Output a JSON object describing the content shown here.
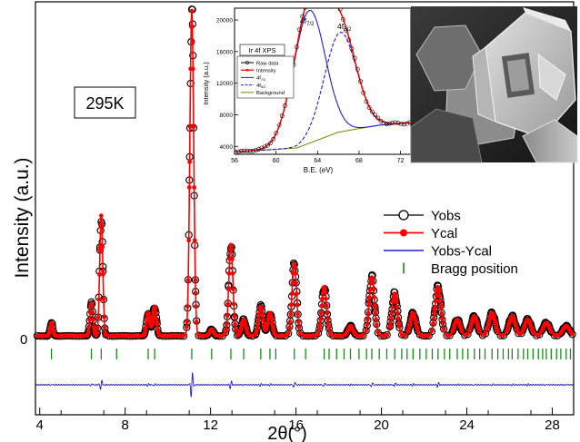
{
  "chart_data": [
    {
      "type": "line",
      "title": "",
      "xlabel": "2θ(°)",
      "ylabel": "Intensity (a.u.)",
      "xlim": [
        3.8,
        29.0
      ],
      "xticks": [
        4,
        8,
        12,
        16,
        20,
        24,
        28
      ],
      "y_zero_label": "0",
      "temperature_label": "295K",
      "series": [
        {
          "name": "Yobs",
          "style": "open-circles",
          "color": "#000000"
        },
        {
          "name": "Ycal",
          "style": "line-filled-circles",
          "color": "#ff0000"
        },
        {
          "name": "Yobs-Ycal",
          "style": "line",
          "color": "#1f1fd0"
        },
        {
          "name": "Bragg position",
          "style": "ticks",
          "color": "#1a8c1a"
        }
      ],
      "peaks": [
        {
          "x": 4.55,
          "y": 0.04
        },
        {
          "x": 6.42,
          "y": 0.1
        },
        {
          "x": 6.88,
          "y": 0.37
        },
        {
          "x": 9.08,
          "y": 0.07
        },
        {
          "x": 9.38,
          "y": 0.09
        },
        {
          "x": 11.12,
          "y": 1.0
        },
        {
          "x": 12.05,
          "y": 0.02
        },
        {
          "x": 12.95,
          "y": 0.28
        },
        {
          "x": 13.55,
          "y": 0.05
        },
        {
          "x": 14.35,
          "y": 0.09
        },
        {
          "x": 14.78,
          "y": 0.07
        },
        {
          "x": 15.92,
          "y": 0.22
        },
        {
          "x": 17.32,
          "y": 0.15
        },
        {
          "x": 18.55,
          "y": 0.03
        },
        {
          "x": 19.55,
          "y": 0.18
        },
        {
          "x": 20.62,
          "y": 0.13
        },
        {
          "x": 21.48,
          "y": 0.07
        },
        {
          "x": 22.65,
          "y": 0.15
        },
        {
          "x": 23.55,
          "y": 0.05
        },
        {
          "x": 24.35,
          "y": 0.06
        },
        {
          "x": 25.18,
          "y": 0.07
        },
        {
          "x": 26.12,
          "y": 0.06
        },
        {
          "x": 26.85,
          "y": 0.05
        },
        {
          "x": 27.72,
          "y": 0.04
        },
        {
          "x": 28.65,
          "y": 0.03
        }
      ],
      "bragg_positions": [
        4.55,
        6.42,
        6.88,
        7.6,
        9.08,
        9.38,
        11.12,
        12.05,
        12.95,
        13.55,
        14.35,
        14.78,
        15.05,
        15.92,
        16.45,
        17.32,
        17.55,
        17.9,
        18.25,
        18.55,
        18.95,
        19.3,
        19.55,
        19.9,
        20.25,
        20.62,
        20.95,
        21.2,
        21.48,
        21.8,
        22.1,
        22.38,
        22.65,
        22.95,
        23.2,
        23.55,
        23.8,
        24.05,
        24.35,
        24.6,
        24.85,
        25.18,
        25.45,
        25.7,
        25.95,
        26.12,
        26.4,
        26.65,
        26.85,
        27.1,
        27.35,
        27.55,
        27.72,
        27.95,
        28.2,
        28.4,
        28.65,
        28.85
      ]
    },
    {
      "type": "line",
      "title": "Ir 4f XPS",
      "xlabel": "B.E. (eV)",
      "ylabel": "Intensity (a.u.)",
      "xlim": [
        56,
        73
      ],
      "ylim": [
        3000,
        21500
      ],
      "xticks": [
        56,
        60,
        64,
        68,
        72
      ],
      "yticks": [
        4000,
        8000,
        12000,
        16000,
        20000
      ],
      "peak_labels": [
        {
          "main": "4f",
          "sub": "7/2",
          "x": 62.3
        },
        {
          "main": "4f",
          "sub": "5/2",
          "x": 65.9
        }
      ],
      "series": [
        {
          "name": "Raw data",
          "color": "#000000"
        },
        {
          "name": "Intensity",
          "color": "#ff0000"
        },
        {
          "name": "4f7/2",
          "legend_main": "4f",
          "legend_sub": "7/2",
          "color": "#1f1fd0"
        },
        {
          "name": "4f5/2",
          "legend_main": "4f",
          "legend_sub": "5/2",
          "color": "#1f1fd0"
        },
        {
          "name": "Background",
          "color": "#808000"
        }
      ],
      "components": {
        "peak_7_2": {
          "center": 63.2,
          "height": 16800,
          "width": 1.55
        },
        "peak_5_2": {
          "center": 66.2,
          "height": 12600,
          "width": 1.55
        },
        "background": [
          [
            56,
            3300
          ],
          [
            62,
            3800
          ],
          [
            66,
            5800
          ],
          [
            70,
            6700
          ],
          [
            73,
            7000
          ]
        ]
      }
    }
  ],
  "inset_image": {
    "type": "SEM micrograph of hexagonal crystals"
  }
}
